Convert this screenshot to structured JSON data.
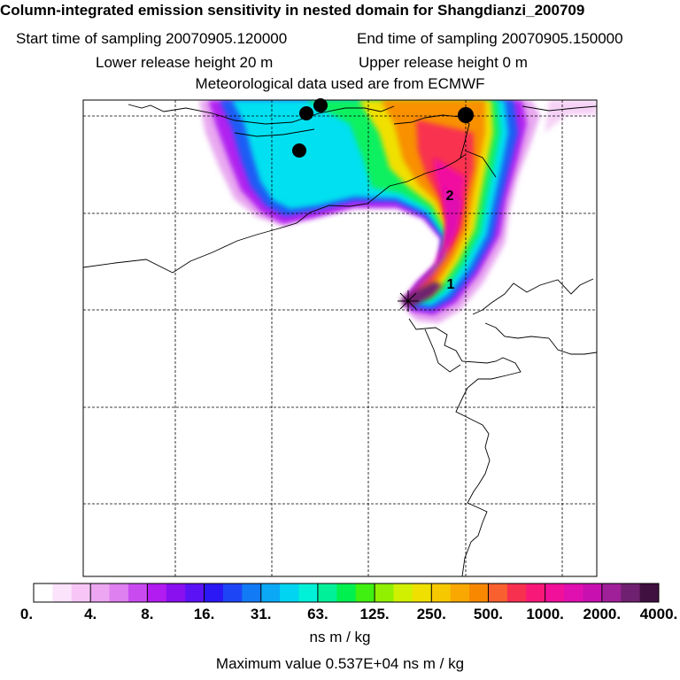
{
  "header": {
    "title": "Column-integrated emission sensitivity in nested domain for Shangdianzi_200709",
    "start_time": "Start time of sampling 20070905.120000",
    "end_time": "End time of sampling 20070905.150000",
    "lower_height": "Lower release height   20 m",
    "upper_height": "Upper release height    0 m",
    "met_data": "Meteorological data used are from ECMWF"
  },
  "map": {
    "labels": [
      "1",
      "2"
    ],
    "station_marker": "cross-marker"
  },
  "colorbar": {
    "ticks": [
      "0.",
      "4.",
      "8.",
      "16.",
      "31.",
      "63.",
      "125.",
      "250.",
      "500.",
      "1000.",
      "2000.",
      "4000."
    ],
    "unit": "ns m / kg",
    "colors": [
      "#ffffff",
      "#fbe3fb",
      "#f7c6f6",
      "#eda6f2",
      "#de80f0",
      "#c94bf0",
      "#b21cf0",
      "#8a10f0",
      "#5b12f5",
      "#2b18f5",
      "#1e45f5",
      "#137af5",
      "#0aa8f5",
      "#00d4f0",
      "#00f0d8",
      "#00f09a",
      "#00f050",
      "#40f010",
      "#90f000",
      "#d0f000",
      "#f0e000",
      "#f6c800",
      "#f8a800",
      "#f88800",
      "#f86030",
      "#f83050",
      "#f81878",
      "#f0109a",
      "#e010b0",
      "#c810b0",
      "#a0209a",
      "#702070",
      "#401040"
    ]
  },
  "footer": {
    "max_value": "Maximum value  0.537E+04 ns m / kg"
  }
}
